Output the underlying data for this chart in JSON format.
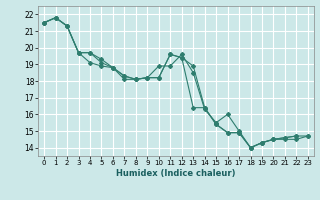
{
  "xlabel": "Humidex (Indice chaleur)",
  "background_color": "#cce8e8",
  "grid_color": "#ffffff",
  "line_color": "#2e7d6e",
  "xlim": [
    -0.5,
    23.5
  ],
  "ylim": [
    13.5,
    22.5
  ],
  "yticks": [
    14,
    15,
    16,
    17,
    18,
    19,
    20,
    21,
    22
  ],
  "xticks": [
    0,
    1,
    2,
    3,
    4,
    5,
    6,
    7,
    8,
    9,
    10,
    11,
    12,
    13,
    14,
    15,
    16,
    17,
    18,
    19,
    20,
    21,
    22,
    23
  ],
  "series": [
    {
      "x": [
        0,
        1,
        2,
        3,
        4,
        5,
        6,
        7,
        8,
        9,
        10,
        11,
        12,
        13,
        14,
        15,
        16,
        17,
        18,
        19,
        20,
        21,
        22
      ],
      "y": [
        21.5,
        21.8,
        21.3,
        19.7,
        19.7,
        19.1,
        18.8,
        18.3,
        18.1,
        18.2,
        18.2,
        19.6,
        19.4,
        18.9,
        16.4,
        15.4,
        14.9,
        14.9,
        14.0,
        14.3,
        14.5,
        14.6,
        14.7
      ]
    },
    {
      "x": [
        0,
        1,
        2,
        3,
        4,
        5,
        6,
        7,
        8,
        9,
        10,
        11,
        12,
        13,
        14,
        15,
        16,
        17,
        18,
        19,
        20,
        21,
        22,
        23
      ],
      "y": [
        21.5,
        21.8,
        21.3,
        19.7,
        19.1,
        18.9,
        18.8,
        18.1,
        18.1,
        18.2,
        18.9,
        18.9,
        19.6,
        18.5,
        16.3,
        15.5,
        16.0,
        15.0,
        14.0,
        14.3,
        14.5,
        14.5,
        14.5,
        14.7
      ]
    },
    {
      "x": [
        0,
        1,
        2,
        3,
        4,
        5,
        6,
        7,
        8,
        9,
        10,
        11,
        12,
        13,
        14,
        15,
        16,
        17,
        18,
        19,
        20,
        21,
        22,
        23
      ],
      "y": [
        21.5,
        21.8,
        21.3,
        19.7,
        19.7,
        19.3,
        18.8,
        18.3,
        18.1,
        18.2,
        18.2,
        19.6,
        19.4,
        16.4,
        16.4,
        15.4,
        14.9,
        14.9,
        14.0,
        14.3,
        14.5,
        14.6,
        14.7,
        14.7
      ]
    }
  ]
}
